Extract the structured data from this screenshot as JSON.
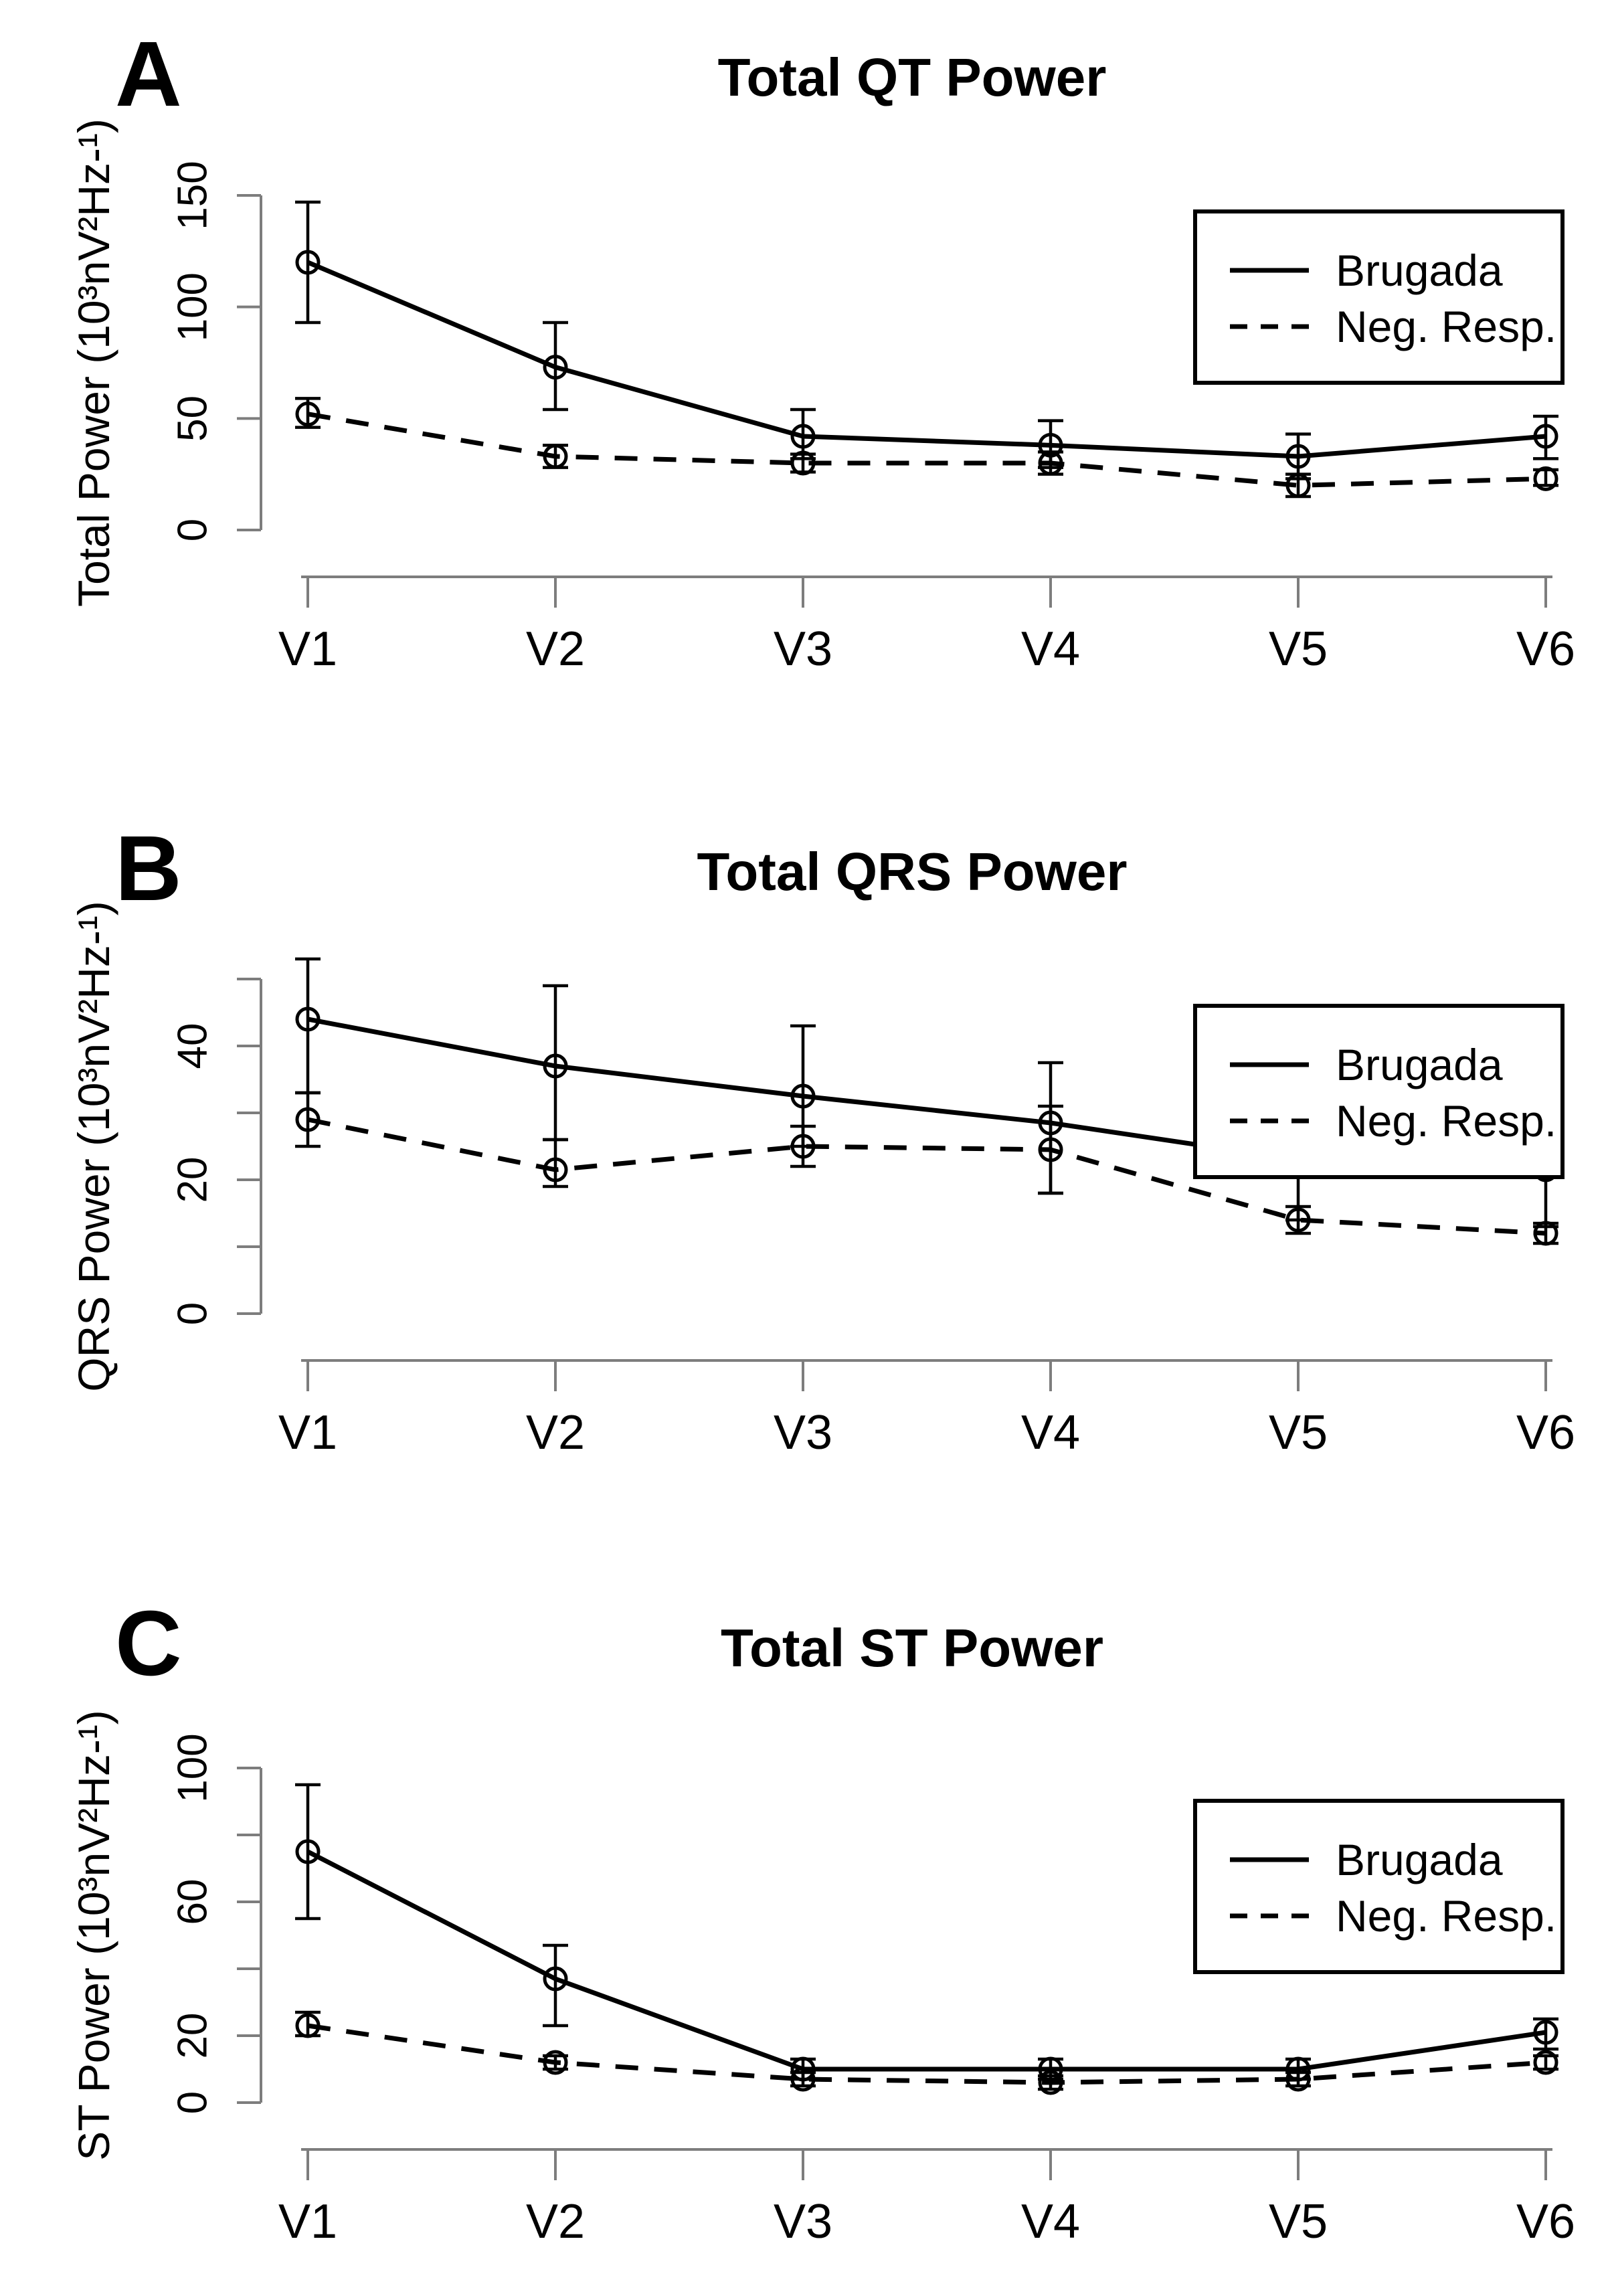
{
  "figure": {
    "type": "multi-panel-line-figure",
    "background": "#ffffff"
  },
  "legend": {
    "items": [
      {
        "label": "Brugada",
        "line_style": "solid"
      },
      {
        "label": "Neg. Resp.",
        "line_style": "dashed"
      }
    ],
    "position": "top-right"
  },
  "colors": {
    "series": "#000000",
    "axis": "#7d7d7d",
    "text": "#000000",
    "background": "#ffffff"
  },
  "chart_data": [
    {
      "type": "line",
      "panel_label": "A",
      "title": "Total QT Power",
      "ylabel": "Total Power (10³nV²Hz-¹)",
      "xlabel": "",
      "categories": [
        "V1",
        "V2",
        "V3",
        "V4",
        "V5",
        "V6"
      ],
      "ylim": [
        0,
        157
      ],
      "yticks": [
        0,
        50,
        100,
        150
      ],
      "ytick_labels": [
        "0",
        "50",
        "100",
        "150"
      ],
      "grid": false,
      "legend_position": "top-right",
      "series": [
        {
          "name": "Brugada",
          "line_style": "solid",
          "values": [
            120,
            73,
            42,
            38,
            33,
            42
          ],
          "err_low": [
            93,
            54,
            32,
            28,
            23,
            32
          ],
          "err_high": [
            147,
            93,
            54,
            49,
            43,
            51
          ]
        },
        {
          "name": "Neg. Resp.",
          "line_style": "dashed",
          "values": [
            52,
            33,
            30,
            30,
            20,
            23
          ],
          "err_low": [
            46,
            28,
            26,
            25,
            15,
            20
          ],
          "err_high": [
            59,
            38,
            34,
            35,
            25,
            27
          ]
        }
      ]
    },
    {
      "type": "line",
      "panel_label": "B",
      "title": "Total QRS Power",
      "ylabel": "QRS Power (10³nV²Hz-¹)",
      "xlabel": "",
      "categories": [
        "V1",
        "V2",
        "V3",
        "V4",
        "V5",
        "V6"
      ],
      "ylim": [
        0,
        55
      ],
      "yticks": [
        0,
        10,
        20,
        30,
        40,
        50
      ],
      "ytick_labels": [
        "0",
        "",
        "20",
        "",
        "40",
        ""
      ],
      "grid": false,
      "legend_position": "top-right",
      "series": [
        {
          "name": "Brugada",
          "line_style": "solid",
          "values": [
            44,
            37,
            32.5,
            28.5,
            23,
            21.5
          ],
          "err_low": [
            33,
            26,
            25,
            18,
            14,
            13
          ],
          "err_high": [
            53,
            49,
            43,
            37.5,
            31,
            27.5
          ]
        },
        {
          "name": "Neg. Resp.",
          "line_style": "dashed",
          "values": [
            29,
            21.5,
            25,
            24.5,
            14,
            12
          ],
          "err_low": [
            25,
            19,
            22,
            18,
            12,
            10.5
          ],
          "err_high": [
            33,
            26,
            28,
            31,
            16,
            13.5
          ]
        }
      ]
    },
    {
      "type": "line",
      "panel_label": "C",
      "title": "Total ST Power",
      "ylabel": "ST Power (10³nV²Hz-¹)",
      "xlabel": "",
      "categories": [
        "V1",
        "V2",
        "V3",
        "V4",
        "V5",
        "V6"
      ],
      "ylim": [
        0,
        105
      ],
      "yticks": [
        0,
        20,
        40,
        60,
        80,
        100
      ],
      "ytick_labels": [
        "0",
        "20",
        "",
        "60",
        "",
        "100"
      ],
      "grid": false,
      "legend_position": "top-right",
      "series": [
        {
          "name": "Brugada",
          "line_style": "solid",
          "values": [
            75,
            37,
            10,
            10,
            10,
            21
          ],
          "err_low": [
            55,
            23,
            7,
            7,
            7,
            16
          ],
          "err_high": [
            95,
            47,
            13,
            13,
            13,
            25
          ]
        },
        {
          "name": "Neg. Resp.",
          "line_style": "dashed",
          "values": [
            23,
            12,
            7,
            6,
            7,
            12
          ],
          "err_low": [
            20,
            10,
            5,
            4,
            5,
            10
          ],
          "err_high": [
            27,
            14,
            9,
            8,
            9,
            14
          ]
        }
      ]
    }
  ]
}
